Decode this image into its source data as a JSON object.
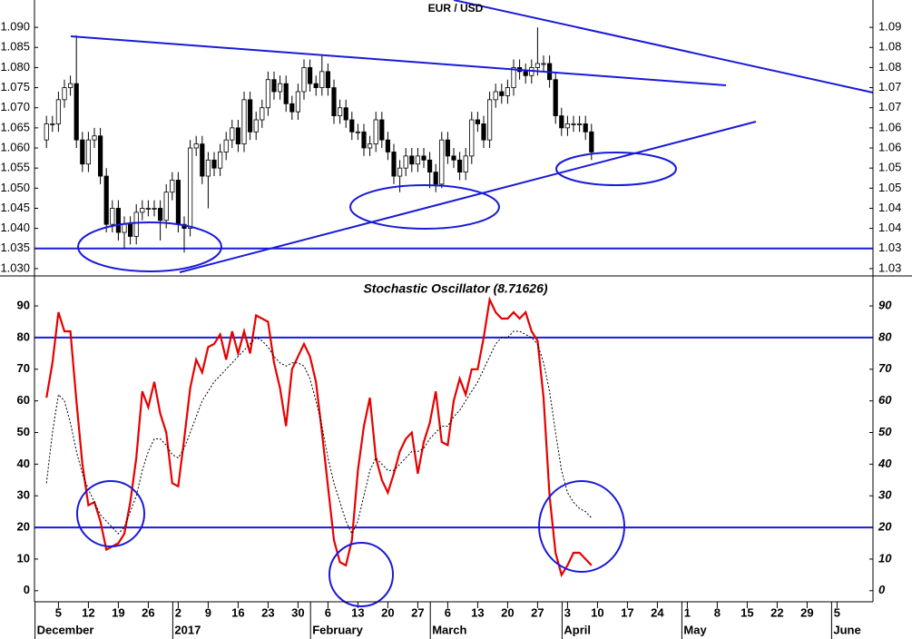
{
  "chart_data": [
    {
      "type": "candlestick",
      "title": "EUR / USD",
      "x": [
        -2,
        -1,
        0,
        1,
        2,
        3,
        4,
        5,
        6,
        7,
        8,
        9,
        10,
        11,
        12,
        13,
        14,
        15,
        16,
        17,
        18,
        19,
        20,
        21,
        22,
        23,
        24,
        25,
        26,
        27,
        28,
        29,
        30,
        31,
        32,
        33,
        34,
        35,
        36,
        37,
        38,
        39,
        40,
        41,
        42,
        43,
        44,
        45,
        46,
        47,
        48,
        49,
        50,
        51,
        52,
        53,
        54,
        55,
        56,
        57,
        58,
        59,
        60,
        61,
        62,
        63,
        64,
        65,
        66,
        67,
        68,
        69,
        70,
        71,
        72,
        73,
        74,
        75,
        76,
        77,
        78,
        79,
        80,
        81,
        82,
        83,
        84,
        85,
        86,
        87,
        88,
        89
      ],
      "open": [
        1.062,
        1.066,
        1.066,
        1.072,
        1.075,
        1.076,
        1.062,
        1.056,
        1.062,
        1.063,
        1.053,
        1.041,
        1.045,
        1.039,
        1.041,
        1.038,
        1.044,
        1.045,
        1.045,
        1.045,
        1.042,
        1.049,
        1.052,
        1.041,
        1.04,
        1.06,
        1.061,
        1.053,
        1.057,
        1.055,
        1.059,
        1.062,
        1.065,
        1.061,
        1.072,
        1.064,
        1.067,
        1.07,
        1.077,
        1.074,
        1.076,
        1.071,
        1.069,
        1.074,
        1.08,
        1.076,
        1.075,
        1.079,
        1.075,
        1.068,
        1.07,
        1.067,
        1.064,
        1.064,
        1.06,
        1.061,
        1.067,
        1.062,
        1.059,
        1.053,
        1.055,
        1.058,
        1.056,
        1.058,
        1.057,
        1.054,
        1.051,
        1.062,
        1.058,
        1.057,
        1.054,
        1.058,
        1.067,
        1.066,
        1.062,
        1.072,
        1.074,
        1.073,
        1.075,
        1.08,
        1.079,
        1.078,
        1.08,
        1.081,
        1.081,
        1.077,
        1.068,
        1.065,
        1.066,
        1.066,
        1.066,
        1.064
      ],
      "high": [
        1.068,
        1.068,
        1.074,
        1.077,
        1.078,
        1.088,
        1.064,
        1.064,
        1.065,
        1.065,
        1.055,
        1.047,
        1.047,
        1.043,
        1.043,
        1.046,
        1.047,
        1.047,
        1.047,
        1.047,
        1.051,
        1.054,
        1.054,
        1.043,
        1.062,
        1.063,
        1.063,
        1.059,
        1.059,
        1.061,
        1.064,
        1.067,
        1.067,
        1.074,
        1.074,
        1.069,
        1.072,
        1.079,
        1.079,
        1.078,
        1.078,
        1.073,
        1.076,
        1.082,
        1.082,
        1.078,
        1.083,
        1.081,
        1.077,
        1.072,
        1.072,
        1.069,
        1.066,
        1.066,
        1.063,
        1.069,
        1.069,
        1.064,
        1.061,
        1.057,
        1.06,
        1.06,
        1.06,
        1.06,
        1.059,
        1.056,
        1.064,
        1.064,
        1.06,
        1.059,
        1.06,
        1.069,
        1.069,
        1.068,
        1.074,
        1.076,
        1.076,
        1.077,
        1.082,
        1.082,
        1.081,
        1.082,
        1.09,
        1.083,
        1.083,
        1.079,
        1.07,
        1.068,
        1.068,
        1.068,
        1.068,
        1.066
      ],
      "low": [
        1.06,
        1.064,
        1.064,
        1.07,
        1.073,
        1.06,
        1.054,
        1.054,
        1.06,
        1.051,
        1.039,
        1.039,
        1.037,
        1.035,
        1.036,
        1.036,
        1.042,
        1.043,
        1.043,
        1.037,
        1.04,
        1.047,
        1.039,
        1.034,
        1.038,
        1.058,
        1.051,
        1.045,
        1.053,
        1.053,
        1.057,
        1.06,
        1.059,
        1.059,
        1.062,
        1.062,
        1.065,
        1.068,
        1.072,
        1.072,
        1.069,
        1.067,
        1.067,
        1.072,
        1.074,
        1.073,
        1.073,
        1.073,
        1.066,
        1.066,
        1.065,
        1.062,
        1.062,
        1.058,
        1.058,
        1.059,
        1.06,
        1.057,
        1.051,
        1.049,
        1.053,
        1.054,
        1.054,
        1.055,
        1.05,
        1.049,
        1.05,
        1.056,
        1.055,
        1.052,
        1.052,
        1.056,
        1.064,
        1.06,
        1.06,
        1.07,
        1.071,
        1.071,
        1.073,
        1.077,
        1.076,
        1.076,
        1.078,
        1.079,
        1.075,
        1.066,
        1.063,
        1.063,
        1.064,
        1.064,
        1.062,
        1.057
      ],
      "close": [
        1.066,
        1.066,
        1.072,
        1.075,
        1.076,
        1.062,
        1.056,
        1.062,
        1.063,
        1.053,
        1.041,
        1.045,
        1.039,
        1.041,
        1.038,
        1.044,
        1.045,
        1.045,
        1.045,
        1.042,
        1.049,
        1.052,
        1.041,
        1.04,
        1.06,
        1.061,
        1.053,
        1.057,
        1.055,
        1.059,
        1.062,
        1.065,
        1.061,
        1.072,
        1.064,
        1.067,
        1.07,
        1.077,
        1.074,
        1.076,
        1.071,
        1.069,
        1.074,
        1.08,
        1.076,
        1.075,
        1.079,
        1.075,
        1.068,
        1.07,
        1.067,
        1.064,
        1.064,
        1.06,
        1.061,
        1.067,
        1.062,
        1.059,
        1.053,
        1.055,
        1.058,
        1.056,
        1.058,
        1.057,
        1.054,
        1.051,
        1.062,
        1.058,
        1.057,
        1.054,
        1.058,
        1.067,
        1.066,
        1.062,
        1.072,
        1.074,
        1.073,
        1.075,
        1.08,
        1.079,
        1.078,
        1.08,
        1.081,
        1.081,
        1.077,
        1.068,
        1.065,
        1.066,
        1.066,
        1.066,
        1.064,
        1.059
      ],
      "up_color": "#ffffff",
      "down_color": "#000000",
      "xlim": [
        -4,
        136
      ],
      "ylim": [
        1.0284,
        1.0968
      ],
      "yticks": [
        {
          "value": 1.09,
          "label": "1.090"
        },
        {
          "value": 1.085,
          "label": "1.085"
        },
        {
          "value": 1.08,
          "label": "1.080"
        },
        {
          "value": 1.075,
          "label": "1.075"
        },
        {
          "value": 1.07,
          "label": "1.070"
        },
        {
          "value": 1.065,
          "label": "1.065"
        },
        {
          "value": 1.06,
          "label": "1.060"
        },
        {
          "value": 1.055,
          "label": "1.055"
        },
        {
          "value": 1.05,
          "label": "1.050"
        },
        {
          "value": 1.045,
          "label": "1.045"
        },
        {
          "value": 1.04,
          "label": "1.040"
        },
        {
          "value": 1.035,
          "label": "1.035"
        },
        {
          "value": 1.03,
          "label": "1.030"
        }
      ],
      "y2ticks": [
        1.09,
        {
          "value": 1.085,
          "label": "1.08"
        },
        1.08,
        {
          "value": 1.075,
          "label": "1.07"
        },
        1.07,
        {
          "value": 1.065,
          "label": "1.06"
        },
        1.06,
        {
          "value": 1.055,
          "label": "1.05"
        },
        1.05,
        {
          "value": 1.045,
          "label": "1.04"
        },
        1.04,
        {
          "value": 1.035,
          "label": "1.03"
        },
        1.03
      ],
      "hlines": [
        1.035
      ],
      "line_color": "#1a1ad8"
    },
    {
      "type": "line",
      "title": "Stochastic Oscillator (8.71626)",
      "x": [
        -2,
        -1,
        0,
        1,
        2,
        3,
        4,
        5,
        6,
        7,
        8,
        9,
        10,
        11,
        12,
        13,
        14,
        15,
        16,
        17,
        18,
        19,
        20,
        21,
        22,
        23,
        24,
        25,
        26,
        27,
        28,
        29,
        30,
        31,
        32,
        33,
        34,
        35,
        36,
        37,
        38,
        39,
        40,
        41,
        42,
        43,
        44,
        45,
        46,
        47,
        48,
        49,
        50,
        51,
        52,
        53,
        54,
        55,
        56,
        57,
        58,
        59,
        60,
        61,
        62,
        63,
        64,
        65,
        66,
        67,
        68,
        69,
        70,
        71,
        72,
        73,
        74,
        75,
        76,
        77,
        78,
        79,
        80,
        81,
        82,
        83,
        84,
        85,
        86,
        87,
        88,
        89
      ],
      "series": [
        {
          "color": "#e60000",
          "dashed": false,
          "values": [
            61,
            72,
            88,
            82,
            82,
            60,
            40,
            27,
            28,
            22,
            13,
            14,
            15,
            18,
            28,
            42,
            63,
            58,
            66,
            56,
            50,
            34,
            33,
            48,
            64,
            73,
            69,
            77,
            78,
            81,
            73,
            82,
            75,
            82,
            75,
            87,
            86,
            85,
            72,
            64,
            52,
            70,
            74,
            78,
            74,
            66,
            50,
            33,
            16,
            9,
            8,
            16,
            38,
            52,
            61,
            42,
            35,
            31,
            37,
            44,
            48,
            50,
            37,
            47,
            53,
            63,
            47,
            46,
            60,
            67,
            62,
            70,
            70,
            80,
            92,
            88,
            86,
            86,
            88,
            86,
            88,
            82,
            79,
            61,
            30,
            12,
            5,
            8,
            12,
            12,
            10,
            8
          ]
        },
        {
          "color": "#000000",
          "dashed": true,
          "values": [
            34,
            50,
            62,
            60,
            53,
            44,
            37,
            32,
            28,
            24,
            22,
            20,
            18,
            20,
            25,
            30,
            38,
            44,
            48,
            48,
            46,
            43,
            42,
            45,
            50,
            55,
            60,
            63,
            66,
            68,
            70,
            72,
            74,
            76,
            78,
            80,
            79,
            77,
            74,
            72,
            71,
            72,
            72,
            71,
            67,
            60,
            52,
            42,
            34,
            28,
            22,
            18,
            22,
            30,
            38,
            42,
            40,
            38,
            38,
            40,
            42,
            44,
            44,
            45,
            48,
            50,
            52,
            52,
            55,
            57,
            60,
            63,
            66,
            70,
            74,
            78,
            80,
            80,
            82,
            82,
            81,
            80,
            78,
            72,
            63,
            50,
            38,
            31,
            28,
            26,
            25,
            23
          ]
        }
      ],
      "xlim": [
        -4,
        136
      ],
      "ylim": [
        -3.5,
        99.2
      ],
      "yticks": [
        0,
        10,
        20,
        30,
        40,
        50,
        60,
        70,
        80,
        90
      ],
      "hlines": [
        20,
        80
      ],
      "line_color": "#1a1ad8",
      "xticks": [
        {
          "value": 0,
          "label": "5"
        },
        {
          "value": 5,
          "label": "12"
        },
        {
          "value": 10,
          "label": "19"
        },
        {
          "value": 15,
          "label": "26"
        },
        {
          "value": 20,
          "label": "2"
        },
        {
          "value": 25,
          "label": "9"
        },
        {
          "value": 30,
          "label": "16"
        },
        {
          "value": 35,
          "label": "23"
        },
        {
          "value": 40,
          "label": "30"
        },
        {
          "value": 45,
          "label": "6"
        },
        {
          "value": 50,
          "label": "13"
        },
        {
          "value": 55,
          "label": "20"
        },
        {
          "value": 60,
          "label": "27"
        },
        {
          "value": 65,
          "label": "6"
        },
        {
          "value": 70,
          "label": "13"
        },
        {
          "value": 75,
          "label": "20"
        },
        {
          "value": 80,
          "label": "27"
        },
        {
          "value": 85,
          "label": "3"
        },
        {
          "value": 90,
          "label": "10"
        },
        {
          "value": 95,
          "label": "17"
        },
        {
          "value": 100,
          "label": "24"
        },
        {
          "value": 105,
          "label": "1"
        },
        {
          "value": 110,
          "label": "8"
        },
        {
          "value": 115,
          "label": "15"
        },
        {
          "value": 120,
          "label": "22"
        },
        {
          "value": 125,
          "label": "29"
        },
        {
          "value": 130,
          "label": "5"
        }
      ],
      "month_labels": [
        {
          "value": -3,
          "label": "December"
        },
        {
          "value": 20,
          "label": "2017"
        },
        {
          "value": 43,
          "label": "February"
        },
        {
          "value": 63,
          "label": "March"
        },
        {
          "value": 85,
          "label": "April"
        },
        {
          "value": 105,
          "label": "May"
        },
        {
          "value": 130,
          "label": "June"
        }
      ]
    }
  ]
}
